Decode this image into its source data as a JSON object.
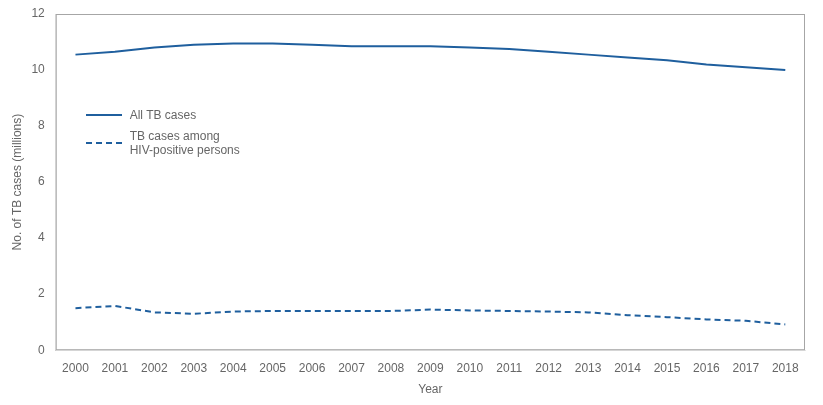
{
  "chart_data": {
    "type": "line",
    "x_label": "Year",
    "y_label": "No. of TB cases (millions)",
    "x": [
      2000,
      2001,
      2002,
      2003,
      2004,
      2005,
      2006,
      2007,
      2008,
      2009,
      2010,
      2011,
      2012,
      2013,
      2014,
      2015,
      2016,
      2017,
      2018
    ],
    "series": [
      {
        "name": "All TB cases",
        "color": "#1f5f9e",
        "line_style": "solid",
        "values": [
          10.55,
          10.65,
          10.8,
          10.9,
          10.95,
          10.95,
          10.9,
          10.85,
          10.85,
          10.85,
          10.8,
          10.75,
          10.65,
          10.55,
          10.45,
          10.35,
          10.2,
          10.1,
          10.0
        ]
      },
      {
        "name": "TB cases among\nHIV-positive persons",
        "color": "#1f5f9e",
        "line_style": "dashed",
        "values": [
          1.5,
          1.58,
          1.35,
          1.3,
          1.38,
          1.4,
          1.4,
          1.4,
          1.4,
          1.45,
          1.42,
          1.4,
          1.38,
          1.35,
          1.25,
          1.18,
          1.1,
          1.05,
          0.92
        ]
      }
    ],
    "xlim": [
      1999.5,
      2018.5
    ],
    "xticks": [
      2000,
      2001,
      2002,
      2003,
      2004,
      2005,
      2006,
      2007,
      2008,
      2009,
      2010,
      2011,
      2012,
      2013,
      2014,
      2015,
      2016,
      2017,
      2018
    ],
    "ylim": [
      0,
      12
    ],
    "yticks": [
      0,
      2,
      4,
      6,
      8,
      10,
      12
    ],
    "grid": false,
    "legend": "upper left"
  }
}
